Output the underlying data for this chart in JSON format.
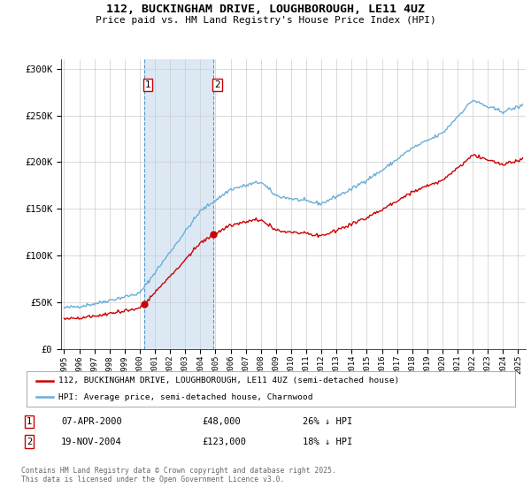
{
  "title": "112, BUCKINGHAM DRIVE, LOUGHBOROUGH, LE11 4UZ",
  "subtitle": "Price paid vs. HM Land Registry's House Price Index (HPI)",
  "legend_line1": "112, BUCKINGHAM DRIVE, LOUGHBOROUGH, LE11 4UZ (semi-detached house)",
  "legend_line2": "HPI: Average price, semi-detached house, Charnwood",
  "sale1_date": "07-APR-2000",
  "sale1_price": "£48,000",
  "sale1_hpi": "26% ↓ HPI",
  "sale1_year": 2000.27,
  "sale1_value": 48000,
  "sale2_date": "19-NOV-2004",
  "sale2_price": "£123,000",
  "sale2_hpi": "18% ↓ HPI",
  "sale2_year": 2004.88,
  "sale2_value": 123000,
  "footer": "Contains HM Land Registry data © Crown copyright and database right 2025.\nThis data is licensed under the Open Government Licence v3.0.",
  "hpi_color": "#6baed6",
  "price_color": "#cc0000",
  "shade_color": "#dce9f5",
  "background_color": "#ffffff",
  "ylim": [
    0,
    310000
  ],
  "xlim_start": 1994.8,
  "xlim_end": 2025.5
}
